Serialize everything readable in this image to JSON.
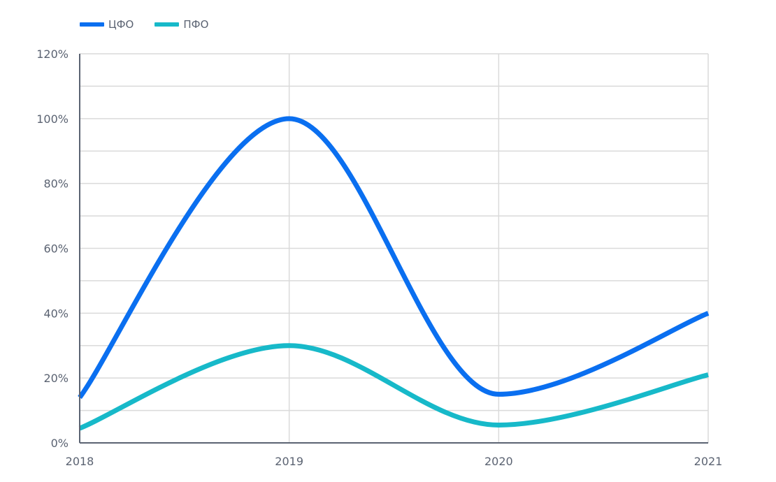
{
  "legend": {
    "items": [
      {
        "label": "ЦФО",
        "color": "#0a6ff0"
      },
      {
        "label": "ПФО",
        "color": "#17b9c9"
      }
    ]
  },
  "colors": {
    "axis": "#5b6372",
    "grid": "#dadada",
    "text": "#5b6372"
  },
  "chart_data": {
    "type": "line",
    "title": "",
    "xlabel": "",
    "ylabel": "",
    "categories": [
      "2018",
      "2019",
      "2020",
      "2021"
    ],
    "series": [
      {
        "name": "ЦФО",
        "color": "#0a6ff0",
        "values": [
          14,
          100,
          15,
          40
        ]
      },
      {
        "name": "ПФО",
        "color": "#17b9c9",
        "values": [
          4.5,
          30,
          5.5,
          21
        ]
      }
    ],
    "ylim": [
      0,
      120
    ],
    "y_ticks": [
      "0%",
      "20%",
      "40%",
      "60%",
      "80%",
      "100%",
      "120%"
    ],
    "y_tick_values": [
      0,
      20,
      40,
      60,
      80,
      100,
      120
    ],
    "minor_grid_step": 10,
    "grid": true,
    "smooth": true,
    "legend_position": "top-left"
  }
}
